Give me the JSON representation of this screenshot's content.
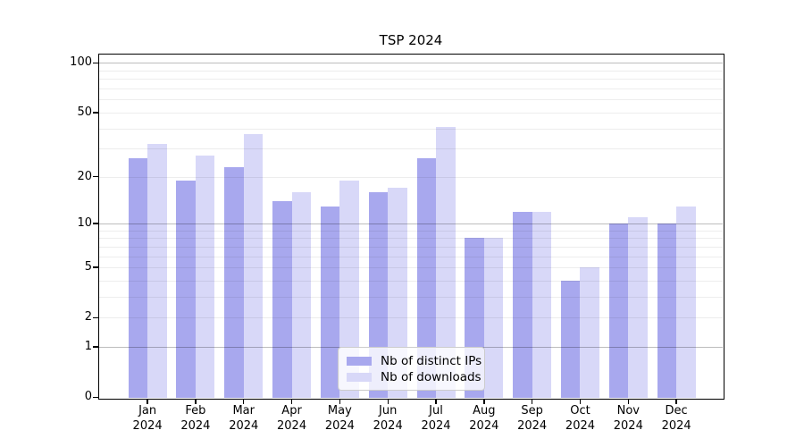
{
  "chart_data": {
    "type": "bar",
    "title": "TSP 2024",
    "categories": [
      "Jan",
      "Feb",
      "Mar",
      "Apr",
      "May",
      "Jun",
      "Jul",
      "Aug",
      "Sep",
      "Oct",
      "Nov",
      "Dec"
    ],
    "x_tick_second_line": "2024",
    "series": [
      {
        "name": "Nb of distinct IPs",
        "color": "#a8a8ee",
        "values": [
          26,
          19,
          23,
          14,
          13,
          16,
          26,
          8,
          12,
          4,
          10,
          10
        ]
      },
      {
        "name": "Nb of downloads",
        "color": "#d8d8f8",
        "values": [
          32,
          27,
          37,
          16,
          19,
          17,
          41,
          8,
          12,
          5,
          11,
          13
        ]
      }
    ],
    "yscale": "log1p",
    "ylim": [
      0,
      113
    ],
    "ytick_labels": [
      "0",
      "1",
      "2",
      "5",
      "10",
      "20",
      "50",
      "100"
    ],
    "ytick_values": [
      0,
      1,
      2,
      5,
      10,
      20,
      50,
      100
    ],
    "major_grid_values": [
      1,
      10,
      100
    ],
    "minor_grid_values": [
      2,
      3,
      4,
      5,
      6,
      7,
      8,
      9,
      20,
      30,
      40,
      50,
      60,
      70,
      80,
      90
    ],
    "grid": "on",
    "legend_position": "lower center"
  }
}
